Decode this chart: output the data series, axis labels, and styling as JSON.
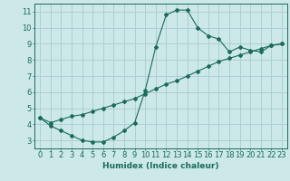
{
  "xlabel": "Humidex (Indice chaleur)",
  "background_color": "#cce8e8",
  "grid_color": "#aacccc",
  "line_color": "#1a6b5a",
  "marker_color": "#1a6b5a",
  "xlim": [
    -0.5,
    23.5
  ],
  "ylim": [
    2.5,
    11.5
  ],
  "xticks": [
    0,
    1,
    2,
    3,
    4,
    5,
    6,
    7,
    8,
    9,
    10,
    11,
    12,
    13,
    14,
    15,
    16,
    17,
    18,
    19,
    20,
    21,
    22,
    23
  ],
  "yticks": [
    3,
    4,
    5,
    6,
    7,
    8,
    9,
    10,
    11
  ],
  "curve1_x": [
    0,
    1,
    2,
    3,
    4,
    5,
    6,
    7,
    8,
    9,
    10,
    11,
    12,
    13,
    14,
    15,
    16,
    17,
    18,
    19,
    20,
    21,
    22,
    23
  ],
  "curve1_y": [
    4.4,
    3.9,
    3.6,
    3.3,
    3.0,
    2.9,
    2.9,
    3.2,
    3.6,
    4.1,
    6.1,
    8.8,
    10.8,
    11.1,
    11.1,
    10.0,
    9.5,
    9.3,
    8.5,
    8.8,
    8.6,
    8.5,
    8.9,
    9.0
  ],
  "curve2_x": [
    0,
    1,
    2,
    3,
    4,
    5,
    6,
    7,
    8,
    9,
    10,
    11,
    12,
    13,
    14,
    15,
    16,
    17,
    18,
    19,
    20,
    21,
    22,
    23
  ],
  "curve2_y": [
    4.4,
    4.1,
    4.3,
    4.5,
    4.6,
    4.8,
    5.0,
    5.2,
    5.4,
    5.6,
    5.9,
    6.2,
    6.5,
    6.7,
    7.0,
    7.3,
    7.6,
    7.9,
    8.1,
    8.3,
    8.5,
    8.7,
    8.9,
    9.0
  ],
  "xlabel_fontsize": 6.5,
  "tick_fontsize": 6
}
